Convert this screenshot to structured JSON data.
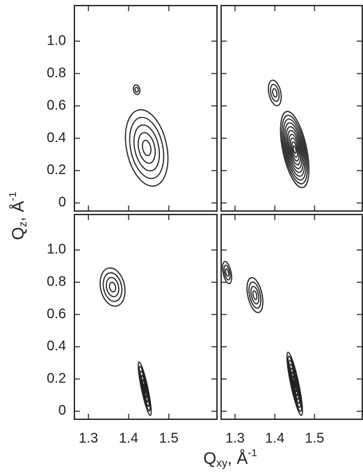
{
  "x_label": {
    "main": "Q",
    "sub": "xy",
    "rest": ", Å",
    "sup": "-1"
  },
  "y_label": {
    "main": "Q",
    "sub": "z",
    "rest": ", Å",
    "sup": "-1"
  },
  "chart_data": [
    {
      "type": "contour",
      "xlim": [
        1.265,
        1.62
      ],
      "ylim": [
        -0.05,
        1.22
      ],
      "xticks": [
        1.3,
        1.4,
        1.5
      ],
      "yticks": [
        0,
        0.2,
        0.4,
        0.6,
        0.8,
        {
          "value": 1,
          "label": "1.0"
        }
      ],
      "xtick_labels": false,
      "ytick_labels": true,
      "color": "#222222",
      "peaks": [
        {
          "x": 1.445,
          "y": 0.34,
          "sx": 0.05,
          "sy": 0.24,
          "levels": 5
        },
        {
          "x": 1.42,
          "y": 0.7,
          "sx": 0.008,
          "sy": 0.03,
          "levels": 2
        }
      ]
    },
    {
      "type": "contour",
      "xlim": [
        1.265,
        1.62
      ],
      "ylim": [
        -0.05,
        1.22
      ],
      "xticks": [
        1.3,
        1.4,
        1.5
      ],
      "yticks": [
        0,
        0.2,
        0.4,
        0.6,
        0.8,
        1
      ],
      "xtick_labels": false,
      "ytick_labels": false,
      "color": "#222222",
      "peaks": [
        {
          "x": 1.4,
          "y": 0.68,
          "sx": 0.015,
          "sy": 0.08,
          "levels": 3
        },
        {
          "x": 1.45,
          "y": 0.33,
          "sx": 0.03,
          "sy": 0.24,
          "levels": 10
        }
      ]
    },
    {
      "type": "contour",
      "xlim": [
        1.265,
        1.62
      ],
      "ylim": [
        -0.05,
        1.22
      ],
      "xticks": [
        1.3,
        1.4,
        1.5
      ],
      "yticks": [
        0,
        0.2,
        0.4,
        0.6,
        0.8,
        {
          "value": 1,
          "label": "1.0"
        }
      ],
      "xtick_labels": true,
      "ytick_labels": true,
      "color": "#222222",
      "peaks": [
        {
          "x": 1.36,
          "y": 0.77,
          "sx": 0.03,
          "sy": 0.12,
          "levels": 4
        },
        {
          "x": 1.44,
          "y": 0.14,
          "sx": 0.008,
          "sy": 0.17,
          "levels": 6
        }
      ]
    },
    {
      "type": "contour",
      "xlim": [
        1.265,
        1.62
      ],
      "ylim": [
        -0.05,
        1.22
      ],
      "xticks": [
        1.3,
        1.4,
        1.5
      ],
      "yticks": [
        0,
        0.2,
        0.4,
        0.6,
        0.8,
        1
      ],
      "xtick_labels": true,
      "ytick_labels": false,
      "color": "#222222",
      "peaks": [
        {
          "x": 1.28,
          "y": 0.86,
          "sx": 0.01,
          "sy": 0.07,
          "levels": 3
        },
        {
          "x": 1.35,
          "y": 0.72,
          "sx": 0.018,
          "sy": 0.11,
          "levels": 4
        },
        {
          "x": 1.45,
          "y": 0.17,
          "sx": 0.01,
          "sy": 0.2,
          "levels": 8
        }
      ]
    }
  ]
}
